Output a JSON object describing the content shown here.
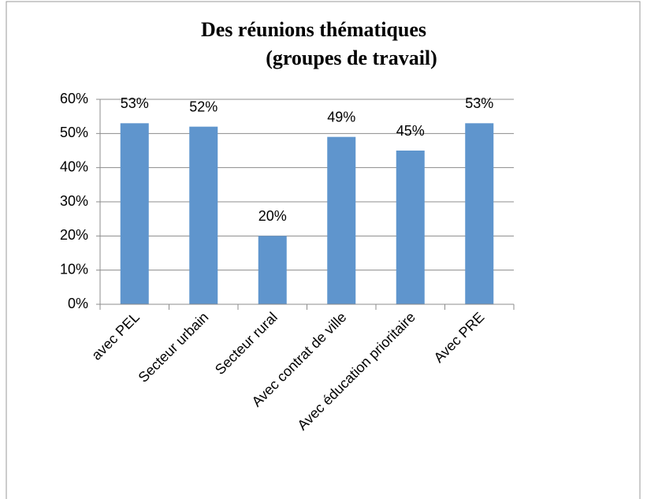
{
  "chart_data": {
    "type": "bar",
    "title": [
      "Des réunions thématiques",
      "(groupes de travail)"
    ],
    "categories": [
      "avec PEL",
      "Secteur urbain",
      "Secteur rural",
      "Avec contrat de ville",
      "Avec éducation prioritaire",
      "Avec PRE"
    ],
    "values": [
      53,
      52,
      20,
      49,
      45,
      53
    ],
    "value_labels": [
      "53%",
      "52%",
      "20%",
      "49%",
      "45%",
      "53%"
    ],
    "color": "#5f95cd",
    "ylim": [
      0,
      60
    ],
    "yticks": [
      {
        "value": 0,
        "label": "0%"
      },
      {
        "value": 10,
        "label": "10%"
      },
      {
        "value": 20,
        "label": "20%"
      },
      {
        "value": 30,
        "label": "30%"
      },
      {
        "value": 40,
        "label": "40%"
      },
      {
        "value": 50,
        "label": "50%"
      },
      {
        "value": 60,
        "label": "60%"
      }
    ],
    "grid": true
  }
}
